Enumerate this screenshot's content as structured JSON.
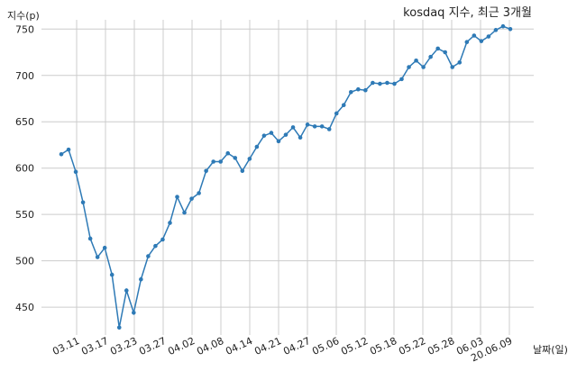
{
  "chart_data": {
    "type": "line",
    "title": "kosdaq 지수, 최근 3개월",
    "xlabel": "날짜(일)",
    "ylabel": "지수(p)",
    "ylim": [
      420,
      760
    ],
    "yticks": [
      450,
      500,
      550,
      600,
      650,
      700,
      750
    ],
    "grid": true,
    "legend": "none",
    "line_color": "#2e7ab6",
    "xtick_labels": [
      "03.11",
      "03.17",
      "03.23",
      "03.27",
      "04.02",
      "04.08",
      "04.14",
      "04.21",
      "04.27",
      "05.06",
      "05.12",
      "05.18",
      "05.22",
      "05.28",
      "06.03",
      "20.06.09"
    ],
    "series": [
      {
        "values": [
          615,
          620,
          596,
          563,
          524,
          504,
          514,
          485,
          428,
          468,
          444,
          480,
          505,
          516,
          523,
          541,
          569,
          552,
          567,
          573,
          597,
          607,
          607,
          616,
          611,
          597,
          610,
          623,
          635,
          638,
          629,
          636,
          644,
          633,
          647,
          645,
          645,
          642,
          659,
          668,
          682,
          685,
          684,
          692,
          691,
          692,
          691,
          696,
          709,
          716,
          709,
          720,
          729,
          725,
          709,
          714,
          736,
          743,
          737,
          742,
          749,
          753,
          750
        ]
      }
    ]
  }
}
